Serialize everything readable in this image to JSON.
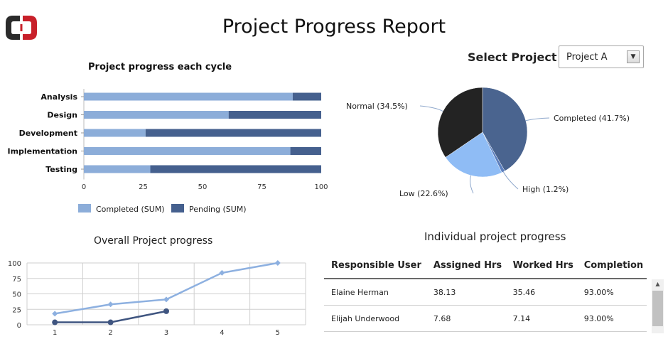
{
  "header": {
    "title": "Project Progress Report"
  },
  "project_select": {
    "label": "Select Project",
    "value": "Project A",
    "arrow_icon": "chevron-down-icon"
  },
  "colors": {
    "completed": "#8cadd9",
    "pending": "#45608e",
    "pie_completed": "#4a648f",
    "pie_high": "#5c7fbe",
    "pie_low": "#8fbcf5",
    "pie_normal": "#232323",
    "line_series_a": "#8db0e0",
    "line_series_b": "#3f5580",
    "logo_left": "#2b2b2b",
    "logo_right": "#c8202a"
  },
  "bar_chart": {
    "title": "Project progress each cycle",
    "chart_data": {
      "type": "bar",
      "orientation": "horizontal",
      "stacked": true,
      "categories": [
        "Analysis",
        "Design",
        "Development",
        "Implementation",
        "Testing"
      ],
      "series": [
        {
          "name": "Completed (SUM)",
          "values": [
            88,
            61,
            26,
            87,
            28
          ]
        },
        {
          "name": "Pending (SUM)",
          "values": [
            12,
            39,
            74,
            13,
            72
          ]
        }
      ],
      "xlim": [
        0,
        100
      ],
      "xticks": [
        "0",
        "25",
        "50",
        "75",
        "100"
      ],
      "legend": "bottom"
    }
  },
  "pie_chart": {
    "chart_data": {
      "type": "pie",
      "slices": [
        {
          "label": "Completed (41.7%)",
          "value": 41.7
        },
        {
          "label": "High (1.2%)",
          "value": 1.2
        },
        {
          "label": "Low (22.6%)",
          "value": 22.6
        },
        {
          "label": "Normal (34.5%)",
          "value": 34.5
        }
      ]
    }
  },
  "line_chart": {
    "title": "Overall Project progress",
    "chart_data": {
      "type": "line",
      "x": [
        1,
        2,
        3,
        4,
        5
      ],
      "series": [
        {
          "values": [
            18,
            33,
            41,
            84,
            100
          ]
        },
        {
          "values": [
            4,
            4,
            22,
            null,
            null
          ]
        }
      ],
      "ylim": [
        0,
        100
      ],
      "yticks": [
        "0",
        "25",
        "50",
        "75",
        "100"
      ],
      "xticks": [
        "1",
        "2",
        "3",
        "4",
        "5"
      ],
      "grid": true
    }
  },
  "table": {
    "title": "Individual project progress",
    "columns": [
      "Responsible User",
      "Assigned Hrs",
      "Worked Hrs",
      "Completion"
    ],
    "rows": [
      [
        "Elaine Herman",
        "38.13",
        "35.46",
        "93.00%"
      ],
      [
        "Elijah Underwood",
        "7.68",
        "7.14",
        "93.00%"
      ]
    ]
  }
}
